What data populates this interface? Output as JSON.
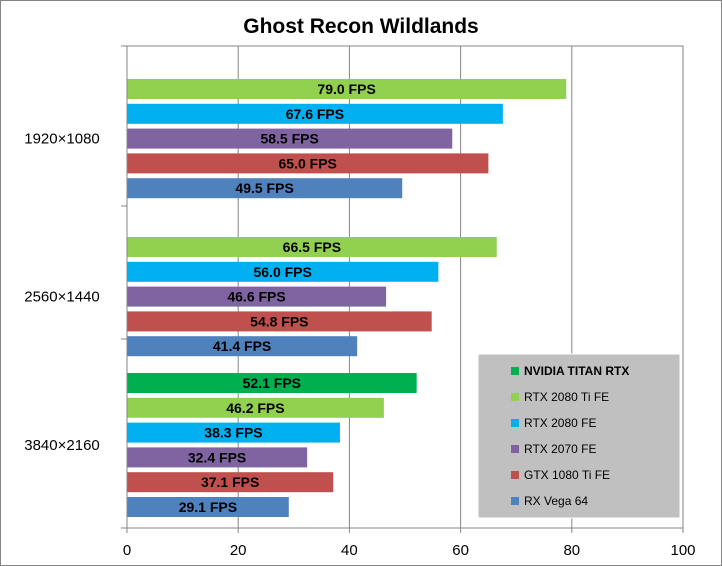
{
  "chart_data": {
    "type": "bar",
    "orientation": "horizontal",
    "title": "Ghost Recon Wildlands",
    "xlabel": "",
    "ylabel": "",
    "xlim": [
      0,
      100
    ],
    "xticks": [
      0,
      20,
      40,
      60,
      80,
      100
    ],
    "grid": true,
    "legend": "bottom-right",
    "value_suffix": " FPS",
    "categories": [
      "1920×1080",
      "2560×1440",
      "3840×2160"
    ],
    "series": [
      {
        "name": "NVIDIA TITAN RTX",
        "color": "#00B050",
        "values": [
          null,
          null,
          52.1
        ],
        "bold": true
      },
      {
        "name": "RTX 2080 Ti FE",
        "color": "#92D050",
        "values": [
          79.0,
          66.5,
          46.2
        ]
      },
      {
        "name": "RTX 2080 FE",
        "color": "#00B0F0",
        "values": [
          67.6,
          56.0,
          38.3
        ]
      },
      {
        "name": "RTX 2070 FE",
        "color": "#8064A2",
        "values": [
          58.5,
          46.6,
          32.4
        ]
      },
      {
        "name": "GTX 1080 Ti FE",
        "color": "#C0504D",
        "values": [
          65.0,
          54.8,
          37.1
        ]
      },
      {
        "name": "RX Vega 64",
        "color": "#4F81BD",
        "values": [
          49.5,
          41.4,
          29.1
        ]
      }
    ]
  }
}
